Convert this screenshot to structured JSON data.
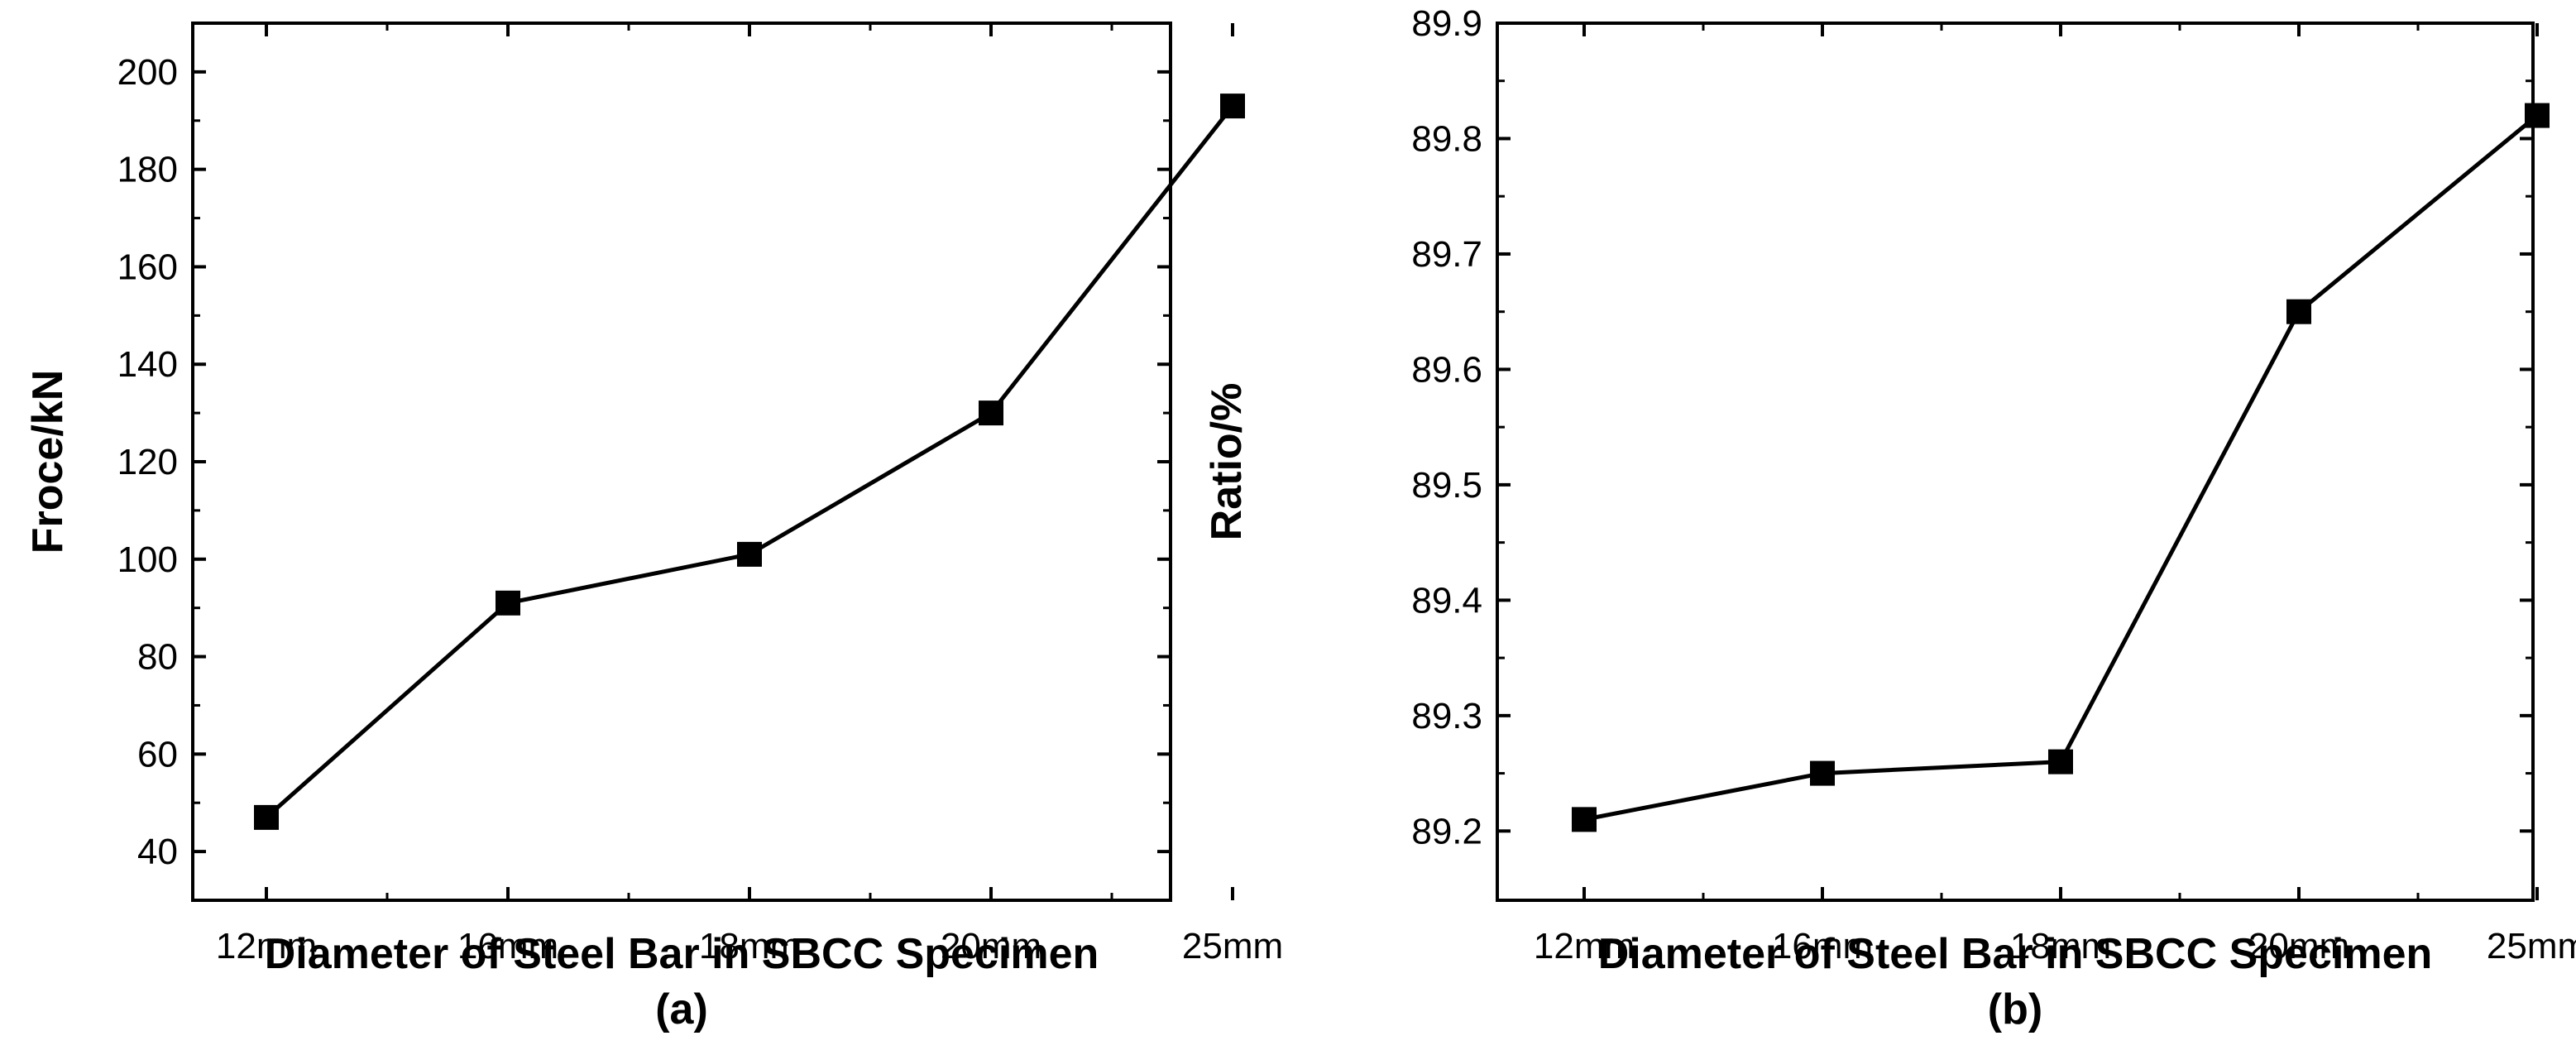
{
  "chart_data": [
    {
      "type": "line",
      "caption": "(a)",
      "categories": [
        "12mm",
        "16mm",
        "18mm",
        "20mm",
        "25mm"
      ],
      "values": [
        47,
        91,
        101,
        130,
        193
      ],
      "xlabel": "Diameter of Steel Bar in SBCC Specimen",
      "ylabel": "Froce/kN",
      "ylim": [
        30,
        210
      ],
      "yticks": [
        40,
        60,
        80,
        100,
        120,
        140,
        160,
        180,
        200
      ],
      "ytick_labels": [
        "40",
        "60",
        "80",
        "100",
        "120",
        "140",
        "160",
        "180",
        "200"
      ],
      "marker": "square",
      "color": "#000000",
      "grid": false,
      "legend": "none"
    },
    {
      "type": "line",
      "caption": "(b)",
      "categories": [
        "12mm",
        "16mm",
        "18mm",
        "20mm",
        "25mm"
      ],
      "values": [
        89.21,
        89.25,
        89.26,
        89.65,
        89.82
      ],
      "xlabel": "Diameter of Steel Bar in SBCC Specimen",
      "ylabel": "Ratio/%",
      "ylim": [
        89.14,
        89.9
      ],
      "yticks": [
        89.2,
        89.3,
        89.4,
        89.5,
        89.6,
        89.7,
        89.8,
        89.9
      ],
      "ytick_labels": [
        "89.2",
        "89.3",
        "89.4",
        "89.5",
        "89.6",
        "89.7",
        "89.8",
        "89.9"
      ],
      "marker": "square",
      "color": "#000000",
      "grid": false,
      "legend": "none"
    }
  ]
}
